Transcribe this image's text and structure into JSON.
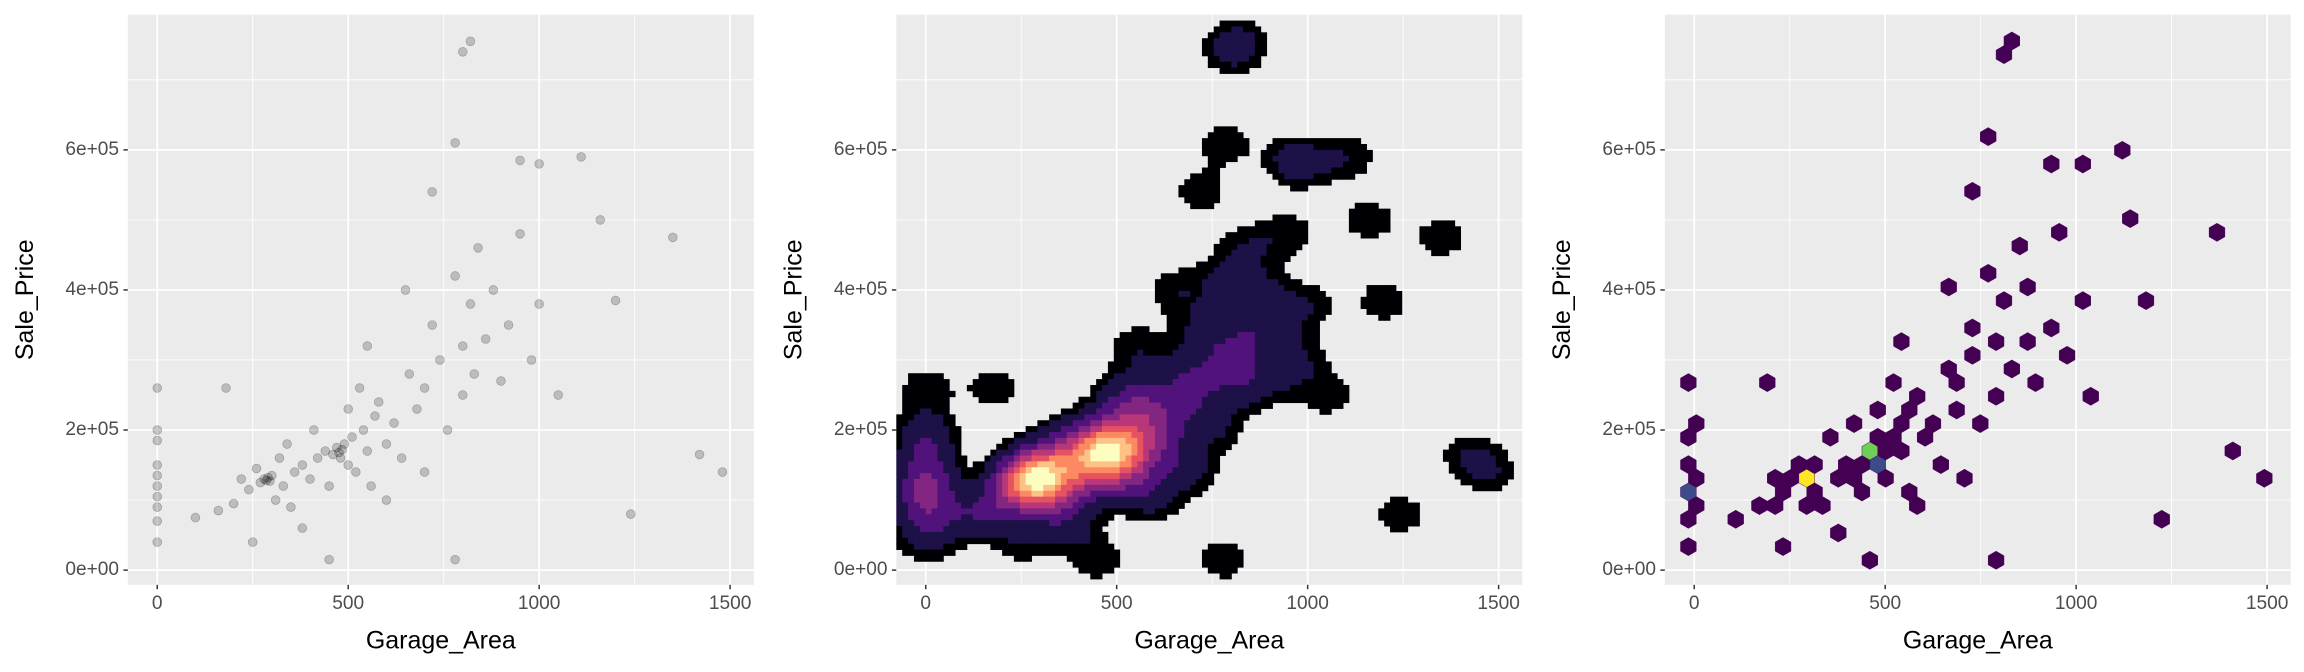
{
  "chart_data": [
    {
      "type": "scatter",
      "x_label": "Garage_Area",
      "y_label": "Sale_Price",
      "alpha": 0.2,
      "color": "#000000",
      "xlim": [
        -77,
        1562
      ],
      "ylim": [
        -21000,
        793000
      ],
      "xticks": [
        0,
        500,
        1000,
        1500
      ],
      "yticks": [
        {
          "value": 0,
          "label": "0e+00"
        },
        {
          "value": 200000,
          "label": "2e+05"
        },
        {
          "value": 400000,
          "label": "4e+05"
        },
        {
          "value": 600000,
          "label": "6e+05"
        }
      ],
      "xminor": [
        250,
        750,
        1250
      ],
      "yminor": [
        100000,
        300000,
        500000,
        700000
      ],
      "grid": true,
      "x": [
        0,
        0,
        0,
        0,
        0,
        0,
        0,
        0,
        0,
        0,
        100,
        180,
        200,
        220,
        240,
        260,
        270,
        280,
        286,
        290,
        295,
        300,
        310,
        320,
        330,
        340,
        350,
        360,
        380,
        400,
        410,
        420,
        440,
        450,
        460,
        470,
        476,
        480,
        484,
        490,
        500,
        500,
        510,
        520,
        530,
        540,
        550,
        560,
        570,
        580,
        600,
        620,
        640,
        660,
        680,
        700,
        720,
        740,
        760,
        780,
        800,
        800,
        820,
        830,
        840,
        860,
        880,
        900,
        920,
        950,
        980,
        1000,
        820,
        800,
        780,
        1110,
        1000,
        950,
        1160,
        1200,
        1350,
        1480,
        1420,
        1240,
        450,
        780,
        600,
        380,
        700,
        1050,
        250,
        160,
        550,
        650,
        720
      ],
      "y": [
        40000,
        70000,
        90000,
        105000,
        120000,
        135000,
        150000,
        185000,
        200000,
        260000,
        75000,
        260000,
        95000,
        130000,
        115000,
        145000,
        125000,
        130000,
        128000,
        132000,
        127000,
        135000,
        100000,
        160000,
        120000,
        180000,
        90000,
        140000,
        150000,
        130000,
        200000,
        160000,
        170000,
        120000,
        165000,
        175000,
        168000,
        160000,
        172000,
        180000,
        150000,
        230000,
        190000,
        140000,
        260000,
        200000,
        170000,
        120000,
        220000,
        240000,
        180000,
        210000,
        160000,
        280000,
        230000,
        260000,
        350000,
        300000,
        200000,
        420000,
        250000,
        320000,
        380000,
        280000,
        460000,
        330000,
        400000,
        270000,
        350000,
        480000,
        300000,
        380000,
        755000,
        740000,
        610000,
        590000,
        580000,
        585000,
        500000,
        385000,
        475000,
        140000,
        165000,
        80000,
        15000,
        15000,
        100000,
        60000,
        140000,
        250000,
        40000,
        85000,
        320000,
        400000,
        540000
      ]
    },
    {
      "type": "density",
      "x_label": "Garage_Area",
      "y_label": "Sale_Price",
      "alpha": 0.1,
      "color": "#000000",
      "palette": [
        "#000004",
        "#1d1147",
        "#51127c",
        "#832681",
        "#b73779",
        "#e75263",
        "#fc8961",
        "#fec287",
        "#fcfdbf"
      ],
      "xlim": [
        -77,
        1562
      ],
      "ylim": [
        -21000,
        793000
      ],
      "xticks": [
        0,
        500,
        1000,
        1500
      ],
      "yticks": [
        {
          "value": 0,
          "label": "0e+00"
        },
        {
          "value": 200000,
          "label": "2e+05"
        },
        {
          "value": 400000,
          "label": "4e+05"
        },
        {
          "value": 600000,
          "label": "6e+05"
        }
      ],
      "xminor": [
        250,
        750,
        1250
      ],
      "yminor": [
        100000,
        300000,
        500000,
        700000
      ],
      "grid": true,
      "x": [
        0,
        0,
        0,
        0,
        0,
        0,
        0,
        0,
        0,
        0,
        100,
        180,
        200,
        220,
        240,
        260,
        270,
        280,
        286,
        290,
        295,
        300,
        310,
        320,
        330,
        340,
        350,
        360,
        380,
        400,
        410,
        420,
        440,
        450,
        460,
        470,
        476,
        480,
        484,
        490,
        500,
        500,
        510,
        520,
        530,
        540,
        550,
        560,
        570,
        580,
        600,
        620,
        640,
        660,
        680,
        700,
        720,
        740,
        760,
        780,
        800,
        800,
        820,
        830,
        840,
        860,
        880,
        900,
        920,
        950,
        980,
        1000,
        820,
        800,
        780,
        1110,
        1000,
        950,
        1160,
        1200,
        1350,
        1480,
        1420,
        1240,
        450,
        780,
        600,
        380,
        700,
        1050,
        250,
        160,
        550,
        650,
        720
      ],
      "y": [
        40000,
        70000,
        90000,
        105000,
        120000,
        135000,
        150000,
        185000,
        200000,
        260000,
        75000,
        260000,
        95000,
        130000,
        115000,
        145000,
        125000,
        130000,
        128000,
        132000,
        127000,
        135000,
        100000,
        160000,
        120000,
        180000,
        90000,
        140000,
        150000,
        130000,
        200000,
        160000,
        170000,
        120000,
        165000,
        175000,
        168000,
        160000,
        172000,
        180000,
        150000,
        230000,
        190000,
        140000,
        260000,
        200000,
        170000,
        120000,
        220000,
        240000,
        180000,
        210000,
        160000,
        280000,
        230000,
        260000,
        350000,
        300000,
        200000,
        420000,
        250000,
        320000,
        380000,
        280000,
        460000,
        330000,
        400000,
        270000,
        350000,
        480000,
        300000,
        380000,
        755000,
        740000,
        610000,
        590000,
        580000,
        585000,
        500000,
        385000,
        475000,
        140000,
        165000,
        80000,
        15000,
        15000,
        100000,
        60000,
        140000,
        250000,
        40000,
        85000,
        320000,
        400000,
        540000
      ]
    },
    {
      "type": "hexbin",
      "x_label": "Garage_Area",
      "y_label": "Sale_Price",
      "palette": [
        "#440154",
        "#482878",
        "#3e4a89",
        "#31688e",
        "#26828e",
        "#1f9e89",
        "#35b779",
        "#6ece58",
        "#b5de2b",
        "#fde725"
      ],
      "xlim": [
        -77,
        1562
      ],
      "ylim": [
        -21000,
        793000
      ],
      "xticks": [
        0,
        500,
        1000,
        1500
      ],
      "yticks": [
        {
          "value": 0,
          "label": "0e+00"
        },
        {
          "value": 200000,
          "label": "2e+05"
        },
        {
          "value": 400000,
          "label": "4e+05"
        },
        {
          "value": 600000,
          "label": "6e+05"
        }
      ],
      "xminor": [
        250,
        750,
        1250
      ],
      "yminor": [
        100000,
        300000,
        500000,
        700000
      ],
      "grid": true,
      "x": [
        0,
        0,
        0,
        0,
        0,
        0,
        0,
        0,
        0,
        0,
        100,
        180,
        200,
        220,
        240,
        260,
        270,
        280,
        286,
        290,
        295,
        300,
        310,
        320,
        330,
        340,
        350,
        360,
        380,
        400,
        410,
        420,
        440,
        450,
        460,
        470,
        476,
        480,
        484,
        490,
        500,
        500,
        510,
        520,
        530,
        540,
        550,
        560,
        570,
        580,
        600,
        620,
        640,
        660,
        680,
        700,
        720,
        740,
        760,
        780,
        800,
        800,
        820,
        830,
        840,
        860,
        880,
        900,
        920,
        950,
        980,
        1000,
        820,
        800,
        780,
        1110,
        1000,
        950,
        1160,
        1200,
        1350,
        1480,
        1420,
        1240,
        450,
        780,
        600,
        380,
        700,
        1050,
        250,
        160,
        550,
        650,
        720
      ],
      "y": [
        40000,
        70000,
        90000,
        105000,
        120000,
        135000,
        150000,
        185000,
        200000,
        260000,
        75000,
        260000,
        95000,
        130000,
        115000,
        145000,
        125000,
        130000,
        128000,
        132000,
        127000,
        135000,
        100000,
        160000,
        120000,
        180000,
        90000,
        140000,
        150000,
        130000,
        200000,
        160000,
        170000,
        120000,
        165000,
        175000,
        168000,
        160000,
        172000,
        180000,
        150000,
        230000,
        190000,
        140000,
        260000,
        200000,
        170000,
        120000,
        220000,
        240000,
        180000,
        210000,
        160000,
        280000,
        230000,
        260000,
        350000,
        300000,
        200000,
        420000,
        250000,
        320000,
        380000,
        280000,
        460000,
        330000,
        400000,
        270000,
        350000,
        480000,
        300000,
        380000,
        755000,
        740000,
        610000,
        590000,
        580000,
        585000,
        500000,
        385000,
        475000,
        140000,
        165000,
        80000,
        15000,
        15000,
        100000,
        60000,
        140000,
        250000,
        40000,
        85000,
        320000,
        400000,
        540000
      ]
    }
  ]
}
